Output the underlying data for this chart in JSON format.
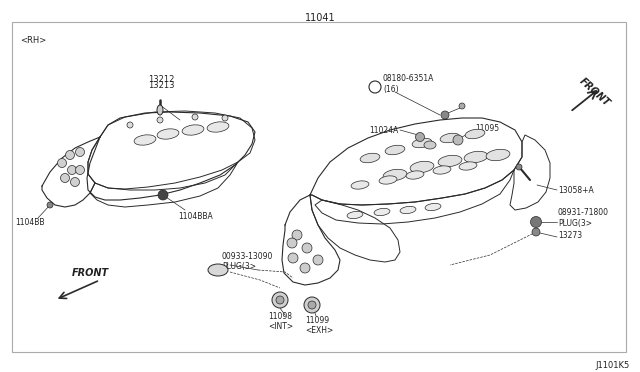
{
  "title": "11041",
  "diagram_id": "J1101K5",
  "bg_color": "#ffffff",
  "border_color": "#aaaaaa",
  "line_color": "#2a2a2a",
  "text_color": "#222222",
  "fig_width": 6.4,
  "fig_height": 3.72,
  "labels": {
    "rh": "<RH>",
    "part_13212": "13212",
    "part_13213": "13213",
    "part_1104bba": "1104BBA",
    "part_1104bb": "1104BB",
    "part_00933": "00933-13090\nPLUG(3>",
    "part_11098": "11098\n<INT>",
    "part_11099": "11099\n<EXH>",
    "part_08180": "B08180-6351A\n(16)",
    "part_11024a": "11024A",
    "part_11095": "11095",
    "part_13058": "13058+A",
    "part_08931": "08931-71800\nPLUG(3>",
    "part_13273": "13273",
    "front_rh": "FRONT",
    "front_lh": "FRONT"
  }
}
